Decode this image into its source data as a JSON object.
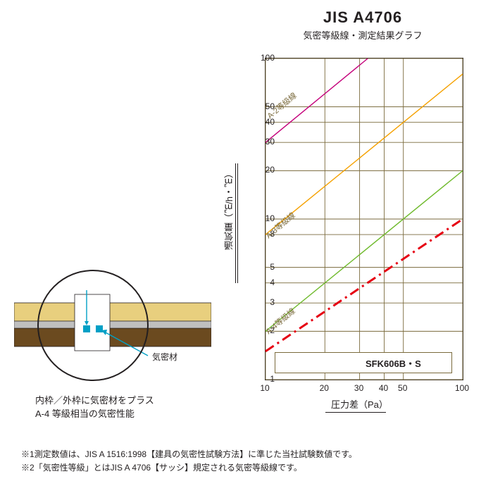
{
  "header": {
    "title": "JIS A4706",
    "subtitle": "気密等級線・測定結果グラフ"
  },
  "chart": {
    "type": "log-log-line",
    "background_color": "#ffffff",
    "grid_color": "#7a6a3c",
    "axis_color": "#231f20",
    "xlabel": "圧力差（Pa）",
    "ylabel": "通気量（㎥/h・㎡）",
    "xlim": [
      10,
      100
    ],
    "ylim": [
      1,
      100
    ],
    "xticks": [
      10,
      20,
      30,
      40,
      50,
      100
    ],
    "yticks": [
      1,
      2,
      3,
      4,
      5,
      8,
      10,
      20,
      30,
      40,
      50,
      100
    ],
    "reference_lines": [
      {
        "label": "A-2等級線",
        "color": "#c4007a",
        "x": [
          10,
          33
        ],
        "y": [
          30,
          100
        ]
      },
      {
        "label": "A-3等級線",
        "color": "#f5a100",
        "x": [
          10,
          100
        ],
        "y": [
          8,
          80
        ]
      },
      {
        "label": "A-4等級線",
        "color": "#6fba2c",
        "x": [
          10,
          100
        ],
        "y": [
          2,
          20
        ]
      }
    ],
    "measured": {
      "label": "SFK606B・S",
      "color": "#e60012",
      "line_style": "dash-dot",
      "line_width": 3,
      "x": [
        10,
        100
      ],
      "y": [
        1.5,
        10
      ]
    },
    "legend": {
      "text": "SFK606B・S",
      "color": "#e60012"
    },
    "tick_fontsize": 12,
    "label_fontsize": 13
  },
  "diagram": {
    "caption_line1": "内枠／外枠に気密材をプラス",
    "caption_line2": "A-4 等級相当の気密性能",
    "seal_label": "気密材",
    "colors": {
      "frame": "#bfbfbf",
      "wood_top": "#e8cf7e",
      "wood_bot": "#6b4a1f",
      "seal": "#00a0c6",
      "bg": "#ffffff",
      "outline": "#231f20"
    }
  },
  "footnotes": {
    "l1": "※1測定数値は、JIS A 1516:1998【建具の気密性試験方法】に準じた当社試験数値です。",
    "l2": "※2「気密性等級」とはJIS A 4706【サッシ】規定される気密等級線です。"
  }
}
